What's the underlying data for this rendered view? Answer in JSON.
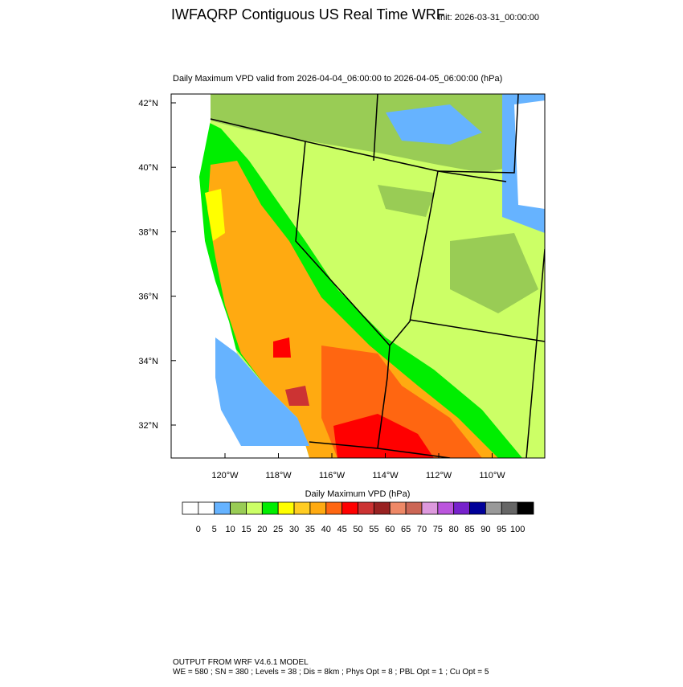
{
  "header": {
    "title": "IWFAQRP Contiguous US Real Time WRF",
    "init": "Init: 2026-03-31_00:00:00"
  },
  "map": {
    "subtitle": "Daily Maximum VPD valid from 2026-04-04_06:00:00 to 2026-04-05_06:00:00   (hPa)",
    "lat_labels": [
      "42°N",
      "40°N",
      "38°N",
      "36°N",
      "34°N",
      "32°N"
    ],
    "lon_labels": [
      "120°W",
      "118°W",
      "116°W",
      "114°W",
      "112°W",
      "110°W"
    ]
  },
  "colorbar": {
    "title": "Daily Maximum VPD  (hPa)",
    "colors": [
      "#ffffff",
      "#ffffff",
      "#66b3ff",
      "#99cc55",
      "#ccff66",
      "#00ee00",
      "#ffff00",
      "#ffcc22",
      "#ffaa11",
      "#ff6611",
      "#ff0000",
      "#cc3333",
      "#992222",
      "#ee8866",
      "#cc6655",
      "#dd99dd",
      "#bb55dd",
      "#7722cc",
      "#000099",
      "#999999",
      "#666666",
      "#000000"
    ],
    "labels": [
      0,
      5,
      10,
      15,
      20,
      25,
      30,
      35,
      40,
      45,
      50,
      55,
      60,
      65,
      70,
      75,
      80,
      85,
      90,
      95,
      100
    ]
  },
  "footer": {
    "lines": [
      "OUTPUT FROM WRF V4.6.1 MODEL",
      "WE = 580 ; SN = 380 ; Levels = 38 ; Dis = 8km ; Phys Opt = 8 ; PBL Opt = 1 ; Cu Opt = 5"
    ]
  }
}
